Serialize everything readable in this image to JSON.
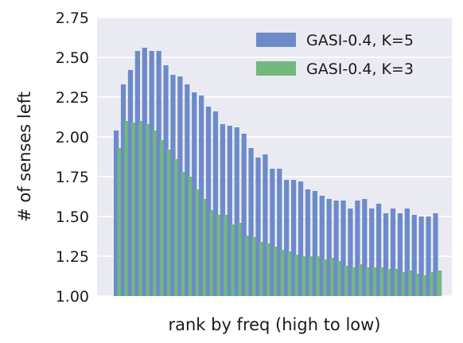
{
  "chart_data": {
    "type": "bar",
    "xlabel": "rank by freq (high to low)",
    "ylabel": "# of senses left",
    "ylim": [
      1.0,
      2.75
    ],
    "yticks": [
      "1.00",
      "1.25",
      "1.50",
      "1.75",
      "2.00",
      "2.25",
      "2.50",
      "2.75"
    ],
    "grid": true,
    "legend_position": "top-right",
    "series": [
      {
        "name": "GASI-0.4, K=5",
        "color": "#6d8bc9",
        "values": [
          2.04,
          2.33,
          2.42,
          2.54,
          2.56,
          2.54,
          2.54,
          2.45,
          2.39,
          2.38,
          2.33,
          2.28,
          2.26,
          2.19,
          2.16,
          2.08,
          2.07,
          2.06,
          2.02,
          1.93,
          1.87,
          1.89,
          1.8,
          1.8,
          1.73,
          1.73,
          1.72,
          1.67,
          1.66,
          1.63,
          1.61,
          1.6,
          1.6,
          1.55,
          1.6,
          1.61,
          1.55,
          1.58,
          1.52,
          1.55,
          1.52,
          1.55,
          1.51,
          1.5,
          1.5,
          1.52
        ]
      },
      {
        "name": "GASI-0.4, K=3",
        "color": "#72b87f",
        "values": [
          1.93,
          2.1,
          2.09,
          2.1,
          2.08,
          2.04,
          1.98,
          1.92,
          1.86,
          1.78,
          1.75,
          1.67,
          1.61,
          1.54,
          1.51,
          1.51,
          1.45,
          1.46,
          1.38,
          1.37,
          1.34,
          1.33,
          1.31,
          1.29,
          1.28,
          1.26,
          1.25,
          1.25,
          1.25,
          1.23,
          1.24,
          1.22,
          1.19,
          1.18,
          1.2,
          1.18,
          1.18,
          1.18,
          1.17,
          1.17,
          1.15,
          1.16,
          1.14,
          1.13,
          1.15,
          1.16
        ]
      }
    ]
  }
}
